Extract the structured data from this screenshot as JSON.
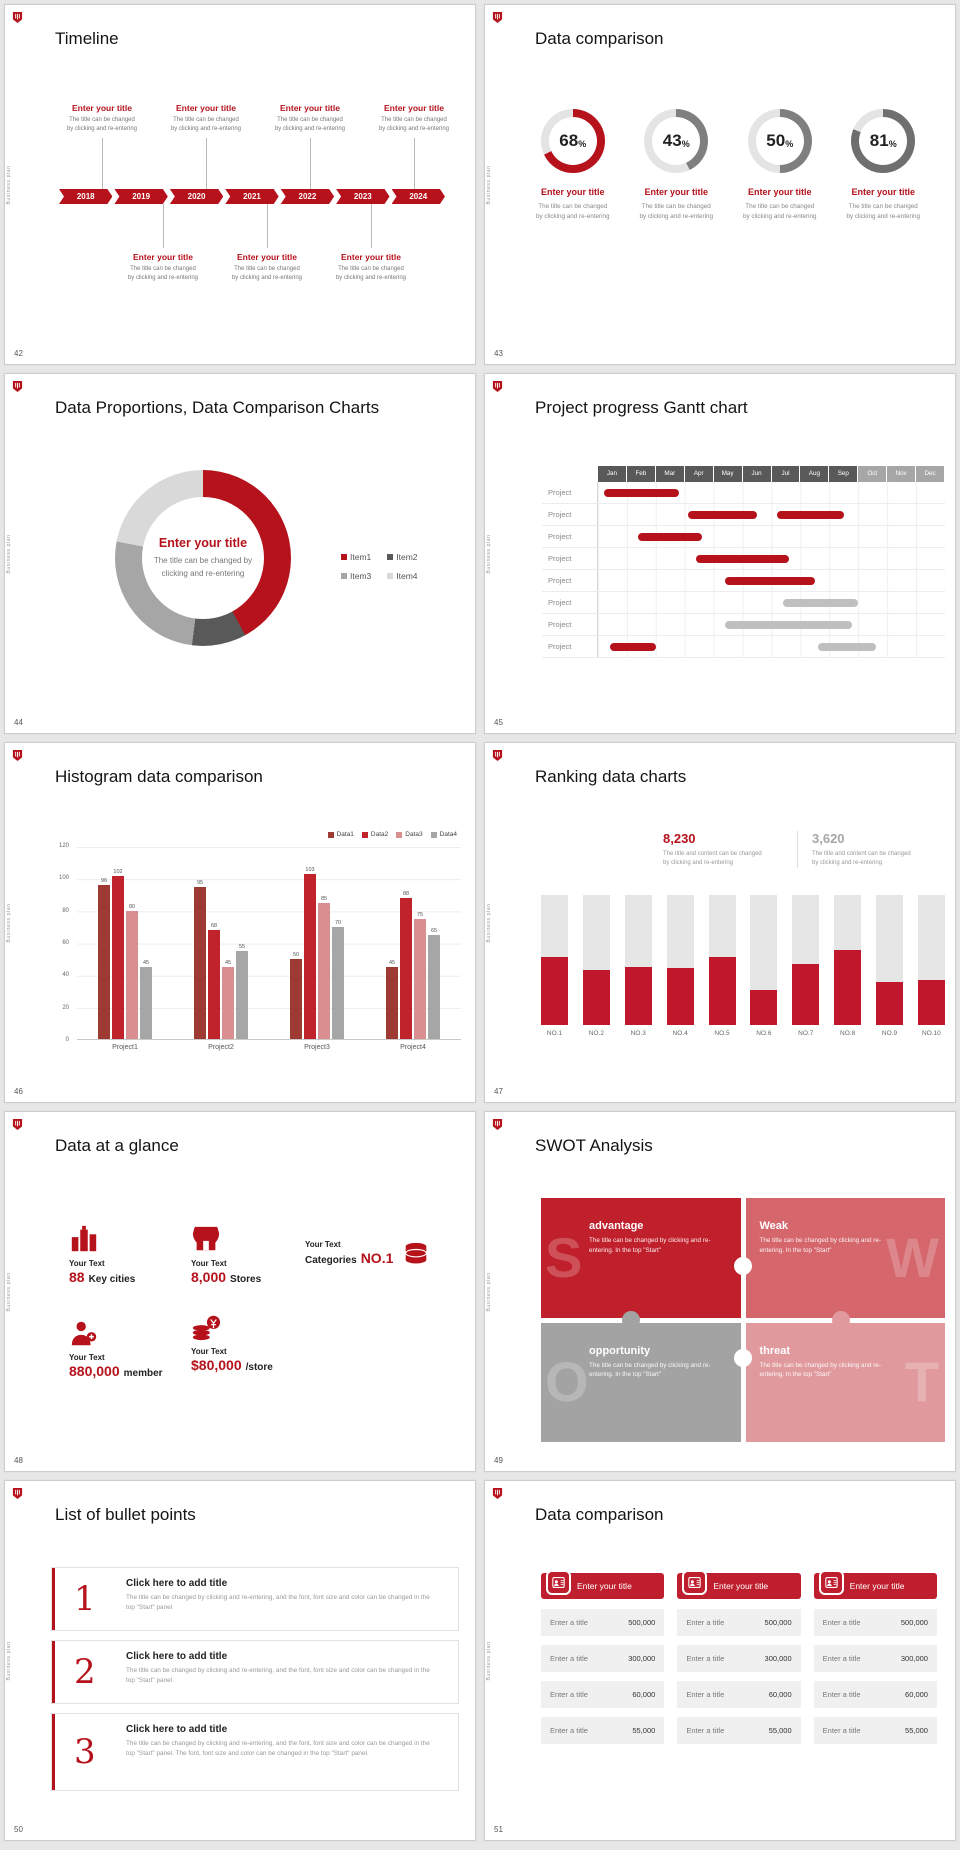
{
  "chrome": {
    "vertical_label": "Business plan",
    "accent": "#b5121b"
  },
  "shared": {
    "item_title": "Enter your title",
    "line1": "The title can be changed",
    "line2": "by clicking and re-entering"
  },
  "slides": [
    {
      "number": "42",
      "title": "Timeline",
      "years": [
        "2018",
        "2019",
        "2020",
        "2021",
        "2022",
        "2023",
        "2024"
      ]
    },
    {
      "number": "43",
      "title": "Data comparison",
      "donuts": [
        {
          "label": "68",
          "suffix": "%",
          "value": 68,
          "color": "#b5121b",
          "track": "#e4e4e4"
        },
        {
          "label": "43",
          "suffix": "%",
          "value": 43,
          "color": "#7f7f7f",
          "track": "#e4e4e4"
        },
        {
          "label": "50",
          "suffix": "%",
          "value": 50,
          "color": "#7f7f7f",
          "track": "#e4e4e4"
        },
        {
          "label": "81",
          "suffix": "%",
          "value": 81,
          "color": "#6f6f6f",
          "track": "#e4e4e4"
        }
      ]
    },
    {
      "number": "44",
      "title": "Data Proportions, Data Comparison Charts",
      "center_title": "Enter your title",
      "center_line1": "The title can be changed by",
      "center_line2": "clicking and re-entering",
      "values": [
        42,
        10,
        26,
        22
      ],
      "legend": [
        {
          "label": "Item1",
          "color": "#b5121b"
        },
        {
          "label": "Item2",
          "color": "#595959"
        },
        {
          "label": "Item3",
          "color": "#a6a6a6"
        },
        {
          "label": "Item4",
          "color": "#d9d9d9"
        }
      ]
    },
    {
      "number": "45",
      "title": "Project progress Gantt chart",
      "row_label": "Project",
      "months": [
        "Jan",
        "Feb",
        "Mar",
        "Apr",
        "May",
        "Jun",
        "Jul",
        "Aug",
        "Sep",
        "Oct",
        "Nov",
        "Dec"
      ],
      "dark_until": 9,
      "header_dark": "#595959",
      "header_light": "#a6a6a6",
      "rows": [
        {
          "bars": [
            {
              "start": 0.2,
              "len": 2.6,
              "color": "#b5121b"
            }
          ]
        },
        {
          "bars": [
            {
              "start": 3.1,
              "len": 2.4,
              "color": "#b5121b"
            },
            {
              "start": 6.2,
              "len": 2.3,
              "color": "#b5121b"
            }
          ]
        },
        {
          "bars": [
            {
              "start": 1.4,
              "len": 2.2,
              "color": "#b5121b"
            }
          ]
        },
        {
          "bars": [
            {
              "start": 3.4,
              "len": 3.2,
              "color": "#b5121b"
            }
          ]
        },
        {
          "bars": [
            {
              "start": 4.4,
              "len": 3.1,
              "color": "#b5121b"
            }
          ]
        },
        {
          "bars": [
            {
              "start": 6.4,
              "len": 2.6,
              "color": "#bfbfbf"
            }
          ]
        },
        {
          "bars": [
            {
              "start": 4.4,
              "len": 4.4,
              "color": "#bfbfbf"
            }
          ]
        },
        {
          "bars": [
            {
              "start": 0.4,
              "len": 1.6,
              "color": "#b5121b"
            },
            {
              "start": 7.6,
              "len": 2.0,
              "color": "#bfbfbf"
            }
          ]
        }
      ]
    },
    {
      "number": "46",
      "title": "Histogram data comparison",
      "ymax": 120,
      "ystep": 20,
      "groups": [
        "Project1",
        "Project2",
        "Project3",
        "Project4"
      ],
      "values": [
        [
          96,
          102,
          80,
          45
        ],
        [
          95,
          68,
          45,
          55
        ],
        [
          50,
          103,
          85,
          70
        ],
        [
          45,
          88,
          75,
          65
        ]
      ],
      "legend": [
        {
          "label": "Data1",
          "color": "#9e3a32"
        },
        {
          "label": "Data2",
          "color": "#c0232c"
        },
        {
          "label": "Data3",
          "color": "#d98f8f"
        },
        {
          "label": "Data4",
          "color": "#a6a6a6"
        }
      ]
    },
    {
      "number": "47",
      "title": "Ranking data charts",
      "stats": [
        {
          "value": "8,230",
          "line1": "The title and content can be changed",
          "line2": "by clicking and re-entering"
        },
        {
          "value": "3,620",
          "line1": "The title and content can be changed",
          "line2": "by clicking and re-entering"
        }
      ],
      "categories": [
        "NO.1",
        "NO.2",
        "NO.3",
        "NO.4",
        "NO.5",
        "NO.6",
        "NO.7",
        "NO.8",
        "NO.9",
        "NO.10"
      ],
      "values": [
        52,
        42,
        45,
        44,
        52,
        27,
        47,
        58,
        33,
        35
      ],
      "bar_color": "#c0172c",
      "track_color": "#e6e6e6"
    },
    {
      "number": "48",
      "title": "Data at a glance",
      "stats": [
        {
          "label": "Your Text",
          "value": "88",
          "unit": "Key cities"
        },
        {
          "label": "Your Text",
          "value": "8,000",
          "unit": "Stores"
        },
        {
          "label": "Your Text",
          "prefix": "Categories",
          "value": "NO.1"
        },
        {
          "label": "Your Text",
          "value": "880,000",
          "unit": "member"
        },
        {
          "label": "Your Text",
          "value": "$80,000",
          "unit": "/store"
        }
      ]
    },
    {
      "number": "49",
      "title": "SWOT Analysis",
      "quadrants": [
        {
          "letter": "S",
          "heading": "advantage",
          "text": "The title can be changed by clicking and re-entering. In the top \"Start\"",
          "color": "#c0202c"
        },
        {
          "letter": "W",
          "heading": "Weak",
          "text": "The title can be changed by clicking and re-entering. In the top \"Start\"",
          "color": "#d4666c"
        },
        {
          "letter": "O",
          "heading": "opportunity",
          "text": "The title can be changed by clicking and re-entering. In the top \"Start\"",
          "color": "#a3a3a3"
        },
        {
          "letter": "T",
          "heading": "threat",
          "text": "The title can be changed by clicking and re-entering. In the top \"Start\"",
          "color": "#e09a9e"
        }
      ]
    },
    {
      "number": "50",
      "title": "List of bullet points",
      "items": [
        {
          "num": "1",
          "heading": "Click here to add title",
          "text": "The title can be changed by clicking and re-entering, and the font, font size and color can be changed in the top \"Start\" panel"
        },
        {
          "num": "2",
          "heading": "Click here to add title",
          "text": "The title can be changed by clicking and re-entering, and the font, font size and color can be changed in the top \"Start\" panel"
        },
        {
          "num": "3",
          "heading": "Click here to add title",
          "text": "The title can be changed by clicking and re-entering, and the font, font size and color can be changed in the top \"Start\" panel. The font, font size and color can be changed in the top \"Start\" panel."
        }
      ]
    },
    {
      "number": "51",
      "title": "Data comparison",
      "header": "Enter your title",
      "tables": [
        {
          "rows": [
            [
              "Enter a title",
              "500,000"
            ],
            [
              "Enter a title",
              "300,000"
            ],
            [
              "Enter a title",
              "60,000"
            ],
            [
              "Enter a title",
              "55,000"
            ]
          ]
        },
        {
          "rows": [
            [
              "Enter a title",
              "500,000"
            ],
            [
              "Enter a title",
              "300,000"
            ],
            [
              "Enter a title",
              "60,000"
            ],
            [
              "Enter a title",
              "55,000"
            ]
          ]
        },
        {
          "rows": [
            [
              "Enter a title",
              "500,000"
            ],
            [
              "Enter a title",
              "300,000"
            ],
            [
              "Enter a title",
              "60,000"
            ],
            [
              "Enter a title",
              "55,000"
            ]
          ]
        }
      ]
    }
  ]
}
